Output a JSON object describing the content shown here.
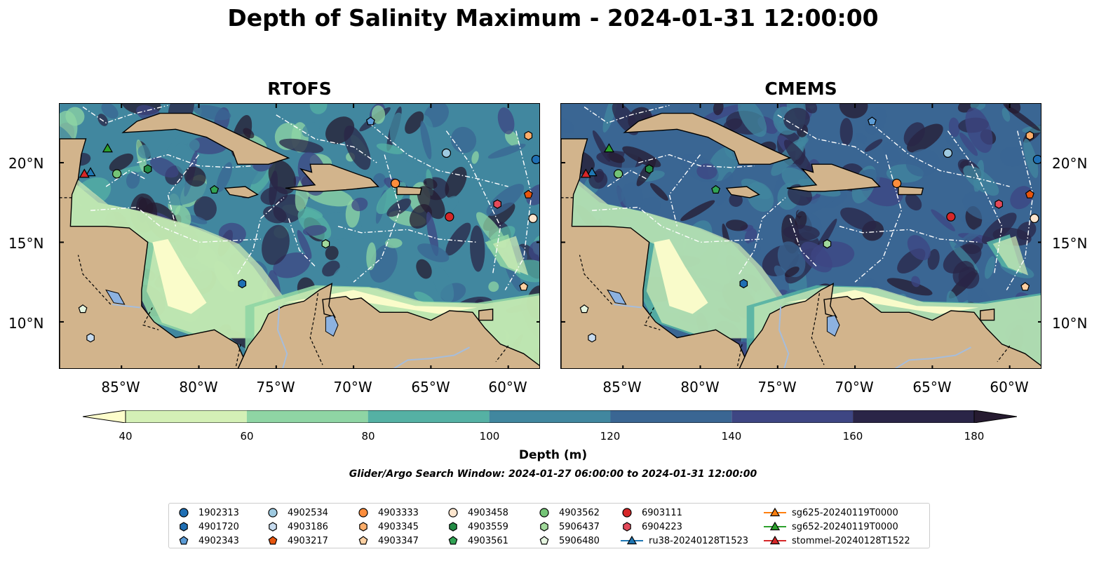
{
  "title": "Depth of Salinity Maximum - 2024-01-31 12:00:00",
  "panels": [
    {
      "title": "RTOFS"
    },
    {
      "title": "CMEMS"
    }
  ],
  "x_ticks": [
    "85°W",
    "80°W",
    "75°W",
    "70°W",
    "65°W",
    "60°W"
  ],
  "y_ticks": [
    "20°N",
    "15°N",
    "10°N"
  ],
  "colorbar": {
    "label": "Depth (m)",
    "ticks": [
      "40",
      "60",
      "80",
      "100",
      "120",
      "140",
      "160",
      "180"
    ],
    "colors": [
      "#fdfdcb",
      "#d4f0b6",
      "#8fd5a4",
      "#55b1a4",
      "#41879f",
      "#3a6693",
      "#3e4683",
      "#2a2547",
      "#261b30"
    ],
    "extend": "both"
  },
  "search_window": "Glider/Argo Search Window: 2024-01-27 06:00:00 to 2024-01-31 12:00:00",
  "colors": {
    "land": "#d2b48c",
    "lake": "#8db2e0",
    "river": "#a6bddb"
  },
  "legend": [
    {
      "label": "1902313",
      "marker": "circle",
      "color": "#1f6fb4"
    },
    {
      "label": "4901720",
      "marker": "hexagon",
      "color": "#1f6fb4"
    },
    {
      "label": "4902343",
      "marker": "pentagon",
      "color": "#5b9bd5"
    },
    {
      "label": "4902534",
      "marker": "circle",
      "color": "#9ecae1"
    },
    {
      "label": "4903186",
      "marker": "hexagon",
      "color": "#c6dbef"
    },
    {
      "label": "4903217",
      "marker": "pentagon",
      "color": "#e6550d"
    },
    {
      "label": "4903333",
      "marker": "circle",
      "color": "#fd8d3c"
    },
    {
      "label": "4903345",
      "marker": "hexagon",
      "color": "#fdae6b"
    },
    {
      "label": "4903347",
      "marker": "pentagon",
      "color": "#fdd0a2"
    },
    {
      "label": "4903458",
      "marker": "circle",
      "color": "#fee6ce"
    },
    {
      "label": "4903559",
      "marker": "hexagon",
      "color": "#238b45"
    },
    {
      "label": "4903561",
      "marker": "pentagon",
      "color": "#31a354"
    },
    {
      "label": "4903562",
      "marker": "circle",
      "color": "#74c476"
    },
    {
      "label": "5906437",
      "marker": "hexagon",
      "color": "#a1d99b"
    },
    {
      "label": "5906480",
      "marker": "pentagon",
      "color": "#e5f5e0"
    },
    {
      "label": "6903111",
      "marker": "circle",
      "color": "#d62728"
    },
    {
      "label": "6904223",
      "marker": "hexagon",
      "color": "#e34a5a"
    },
    {
      "label": "ru38-20240128T1523",
      "marker": "triangle-line",
      "color": "#1f77b4"
    },
    {
      "label": "sg625-20240119T0000",
      "marker": "triangle-line",
      "color": "#ff7f0e"
    },
    {
      "label": "sg652-20240119T0000",
      "marker": "triangle-line",
      "color": "#2ca02c"
    },
    {
      "label": "stommel-20240128T1522",
      "marker": "triangle-line",
      "color": "#d62728"
    }
  ],
  "floats": [
    {
      "id": "1902313",
      "lon": -58.2,
      "lat": 20.2
    },
    {
      "id": "4902534",
      "lon": -64.0,
      "lat": 20.6
    },
    {
      "id": "4902343",
      "lon": -68.9,
      "lat": 22.6
    },
    {
      "id": "4903345",
      "lon": -58.7,
      "lat": 21.7
    },
    {
      "id": "4903333",
      "lon": -67.3,
      "lat": 18.7
    },
    {
      "id": "4903217",
      "lon": -58.7,
      "lat": 18.0
    },
    {
      "id": "6904223",
      "lon": -60.7,
      "lat": 17.4
    },
    {
      "id": "6903111",
      "lon": -63.8,
      "lat": 16.6
    },
    {
      "id": "4903458",
      "lon": -58.4,
      "lat": 16.5
    },
    {
      "id": "4903347",
      "lon": -59.0,
      "lat": 12.2
    },
    {
      "id": "4901720",
      "lon": -77.2,
      "lat": 12.4
    },
    {
      "id": "5906437",
      "lon": -71.8,
      "lat": 14.9
    },
    {
      "id": "4903561",
      "lon": -79.0,
      "lat": 18.3
    },
    {
      "id": "4903559",
      "lon": -83.3,
      "lat": 19.6
    },
    {
      "id": "4903562",
      "lon": -85.3,
      "lat": 19.3
    },
    {
      "id": "5906480",
      "lon": -87.5,
      "lat": 10.8
    },
    {
      "id": "4903186",
      "lon": -87.0,
      "lat": 9.0
    }
  ],
  "gliders": [
    {
      "id": "sg652-20240119T0000",
      "lon": -85.9,
      "lat": 20.8
    },
    {
      "id": "ru38-20240128T1523",
      "lon": -87.0,
      "lat": 19.3
    },
    {
      "id": "stommel-20240128T1522",
      "lon": -87.4,
      "lat": 19.2
    }
  ]
}
